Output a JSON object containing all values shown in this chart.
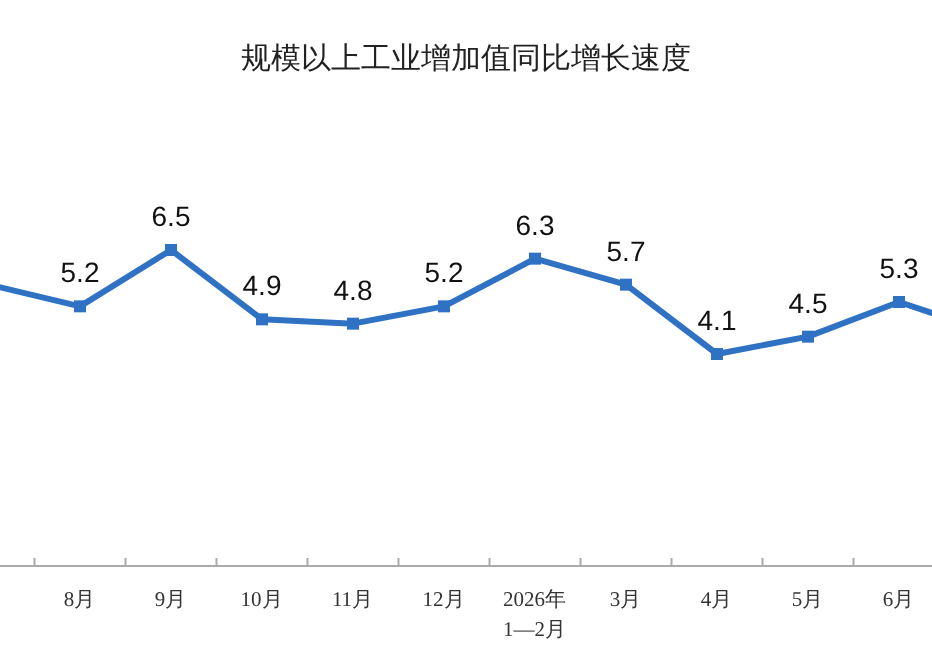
{
  "chart_data": {
    "type": "line",
    "title": "规模以上工业增加值同比增长速度",
    "categories": [
      null,
      "8月",
      "9月",
      "10月",
      "11月",
      "12月",
      "2026年\n1—2月",
      "3月",
      "4月",
      "5月",
      "6月",
      null
    ],
    "series": [
      {
        "color": "#2f72c4",
        "values": [
          5.7,
          5.2,
          6.5,
          4.9,
          4.8,
          5.2,
          6.3,
          5.7,
          4.1,
          4.5,
          5.3,
          4.6
        ],
        "value_labels": [
          null,
          "5.2",
          "6.5",
          "4.9",
          "4.8",
          "5.2",
          "6.3",
          "5.7",
          "4.1",
          "4.5",
          "5.3",
          null
        ]
      }
    ],
    "marker": "square",
    "line_style": "solid"
  }
}
